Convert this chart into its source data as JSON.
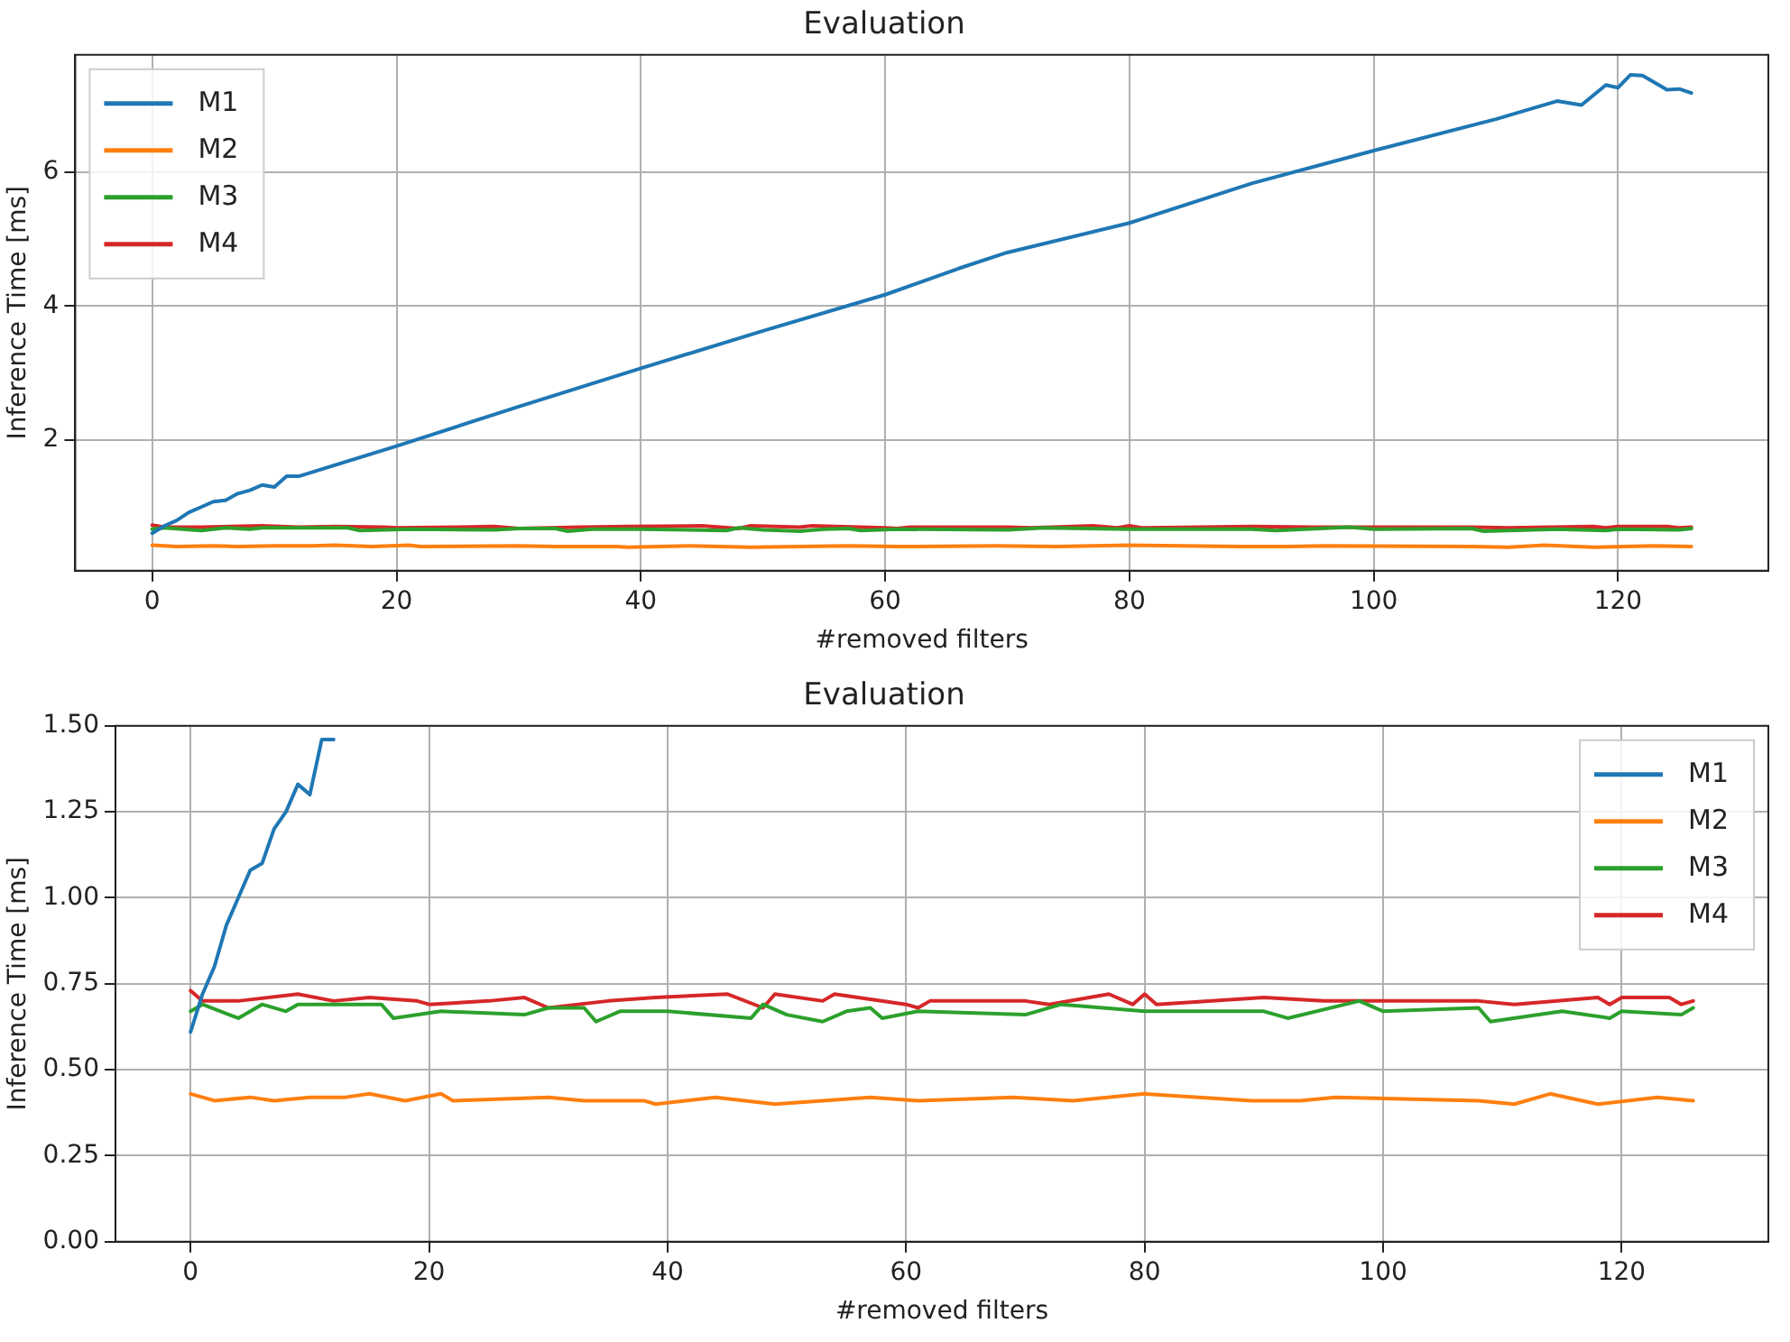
{
  "chart_data": [
    {
      "type": "line",
      "title": "Evaluation",
      "xlabel": "#removed filters",
      "ylabel": "Inference Time [ms]",
      "xlim": [
        -6.3,
        132.3
      ],
      "ylim": [
        0.05,
        7.75
      ],
      "xticks": [
        0,
        20,
        40,
        60,
        80,
        100,
        120
      ],
      "yticks": [
        2,
        4,
        6
      ],
      "grid": true,
      "legend": "top left",
      "line_style": "solid",
      "series": [
        {
          "name": "M1",
          "color": "#1f77b4",
          "x": [
            0,
            1,
            2,
            3,
            4,
            5,
            6,
            7,
            8,
            9,
            10,
            11,
            12,
            20,
            30,
            40,
            50,
            60,
            66,
            70,
            80,
            90,
            100,
            110,
            115,
            117,
            119,
            120,
            121,
            122,
            124,
            125,
            126
          ],
          "values": [
            0.61,
            0.72,
            0.8,
            0.92,
            1.0,
            1.08,
            1.1,
            1.2,
            1.25,
            1.33,
            1.3,
            1.46,
            1.46,
            1.91,
            2.5,
            3.07,
            3.63,
            4.17,
            4.56,
            4.8,
            5.24,
            5.83,
            6.32,
            6.79,
            7.06,
            7.0,
            7.3,
            7.26,
            7.45,
            7.44,
            7.23,
            7.24,
            7.18
          ]
        },
        {
          "name": "M2",
          "color": "#ff7f0e",
          "x": [
            0,
            2,
            5,
            7,
            10,
            13,
            15,
            18,
            21,
            22,
            30,
            33,
            38,
            39,
            44,
            49,
            57,
            61,
            69,
            74,
            80,
            89,
            93,
            96,
            108,
            111,
            114,
            118,
            123,
            126
          ],
          "values": [
            0.43,
            0.41,
            0.42,
            0.41,
            0.42,
            0.42,
            0.43,
            0.41,
            0.43,
            0.41,
            0.42,
            0.41,
            0.41,
            0.4,
            0.42,
            0.4,
            0.42,
            0.41,
            0.42,
            0.41,
            0.43,
            0.41,
            0.41,
            0.42,
            0.41,
            0.4,
            0.43,
            0.4,
            0.42,
            0.41
          ]
        },
        {
          "name": "M3",
          "color": "#2ca02c",
          "x": [
            0,
            1,
            4,
            6,
            8,
            9,
            12,
            16,
            17,
            21,
            28,
            30,
            33,
            34,
            36,
            40,
            47,
            48,
            50,
            53,
            55,
            57,
            58,
            61,
            70,
            73,
            80,
            90,
            92,
            98,
            100,
            108,
            109,
            115,
            119,
            120,
            125,
            126
          ],
          "values": [
            0.67,
            0.69,
            0.65,
            0.69,
            0.67,
            0.69,
            0.69,
            0.69,
            0.65,
            0.67,
            0.66,
            0.68,
            0.68,
            0.64,
            0.67,
            0.67,
            0.65,
            0.69,
            0.66,
            0.64,
            0.67,
            0.68,
            0.65,
            0.67,
            0.66,
            0.69,
            0.67,
            0.67,
            0.65,
            0.7,
            0.67,
            0.68,
            0.64,
            0.67,
            0.65,
            0.67,
            0.66,
            0.68
          ]
        },
        {
          "name": "M4",
          "color": "#d62728",
          "x": [
            0,
            1,
            4,
            9,
            12,
            15,
            19,
            20,
            25,
            28,
            30,
            35,
            39,
            45,
            48,
            49,
            53,
            54,
            60,
            61,
            62,
            70,
            72,
            77,
            79,
            80,
            81,
            90,
            95,
            100,
            108,
            111,
            118,
            119,
            120,
            124,
            125,
            126
          ],
          "values": [
            0.73,
            0.7,
            0.7,
            0.72,
            0.7,
            0.71,
            0.7,
            0.69,
            0.7,
            0.71,
            0.68,
            0.7,
            0.71,
            0.72,
            0.68,
            0.72,
            0.7,
            0.72,
            0.69,
            0.68,
            0.7,
            0.7,
            0.69,
            0.72,
            0.69,
            0.72,
            0.69,
            0.71,
            0.7,
            0.7,
            0.7,
            0.69,
            0.71,
            0.69,
            0.71,
            0.71,
            0.69,
            0.7
          ]
        }
      ]
    },
    {
      "type": "line",
      "title": "Evaluation",
      "xlabel": "#removed filters",
      "ylabel": "Inference Time [ms]",
      "xlim": [
        -6.3,
        132.3
      ],
      "ylim": [
        0,
        1.5
      ],
      "xticks": [
        0,
        20,
        40,
        60,
        80,
        100,
        120
      ],
      "yticks": [
        {
          "value": 0,
          "label": "0.00"
        },
        {
          "value": 0.25,
          "label": "0.25"
        },
        {
          "value": 0.5,
          "label": "0.50"
        },
        {
          "value": 0.75,
          "label": "0.75"
        },
        {
          "value": 1,
          "label": "1.00"
        },
        {
          "value": 1.25,
          "label": "1.25"
        },
        {
          "value": 1.5,
          "label": "1.50"
        }
      ],
      "grid": true,
      "legend": "top right",
      "line_style": "solid",
      "series": [
        {
          "name": "M1",
          "color": "#1f77b4",
          "x": [
            0,
            1,
            2,
            3,
            4,
            5,
            6,
            7,
            8,
            9,
            10,
            11,
            12
          ],
          "values": [
            0.61,
            0.72,
            0.8,
            0.92,
            1.0,
            1.08,
            1.1,
            1.2,
            1.25,
            1.33,
            1.3,
            1.46,
            1.46
          ]
        },
        {
          "name": "M2",
          "color": "#ff7f0e",
          "x": [
            0,
            2,
            5,
            7,
            10,
            13,
            15,
            18,
            21,
            22,
            30,
            33,
            38,
            39,
            44,
            49,
            57,
            61,
            69,
            74,
            80,
            89,
            93,
            96,
            108,
            111,
            114,
            118,
            123,
            126
          ],
          "values": [
            0.43,
            0.41,
            0.42,
            0.41,
            0.42,
            0.42,
            0.43,
            0.41,
            0.43,
            0.41,
            0.42,
            0.41,
            0.41,
            0.4,
            0.42,
            0.4,
            0.42,
            0.41,
            0.42,
            0.41,
            0.43,
            0.41,
            0.41,
            0.42,
            0.41,
            0.4,
            0.43,
            0.4,
            0.42,
            0.41
          ]
        },
        {
          "name": "M3",
          "color": "#2ca02c",
          "x": [
            0,
            1,
            4,
            6,
            8,
            9,
            12,
            16,
            17,
            21,
            28,
            30,
            33,
            34,
            36,
            40,
            47,
            48,
            50,
            53,
            55,
            57,
            58,
            61,
            70,
            73,
            80,
            90,
            92,
            98,
            100,
            108,
            109,
            115,
            119,
            120,
            125,
            126
          ],
          "values": [
            0.67,
            0.69,
            0.65,
            0.69,
            0.67,
            0.69,
            0.69,
            0.69,
            0.65,
            0.67,
            0.66,
            0.68,
            0.68,
            0.64,
            0.67,
            0.67,
            0.65,
            0.69,
            0.66,
            0.64,
            0.67,
            0.68,
            0.65,
            0.67,
            0.66,
            0.69,
            0.67,
            0.67,
            0.65,
            0.7,
            0.67,
            0.68,
            0.64,
            0.67,
            0.65,
            0.67,
            0.66,
            0.68
          ]
        },
        {
          "name": "M4",
          "color": "#d62728",
          "x": [
            0,
            1,
            4,
            9,
            12,
            15,
            19,
            20,
            25,
            28,
            30,
            35,
            39,
            45,
            48,
            49,
            53,
            54,
            60,
            61,
            62,
            70,
            72,
            77,
            79,
            80,
            81,
            90,
            95,
            100,
            108,
            111,
            118,
            119,
            120,
            124,
            125,
            126
          ],
          "values": [
            0.73,
            0.7,
            0.7,
            0.72,
            0.7,
            0.71,
            0.7,
            0.69,
            0.7,
            0.71,
            0.68,
            0.7,
            0.71,
            0.72,
            0.68,
            0.72,
            0.7,
            0.72,
            0.69,
            0.68,
            0.7,
            0.7,
            0.69,
            0.72,
            0.69,
            0.72,
            0.69,
            0.71,
            0.7,
            0.7,
            0.7,
            0.69,
            0.71,
            0.69,
            0.71,
            0.71,
            0.69,
            0.7
          ]
        }
      ]
    }
  ]
}
